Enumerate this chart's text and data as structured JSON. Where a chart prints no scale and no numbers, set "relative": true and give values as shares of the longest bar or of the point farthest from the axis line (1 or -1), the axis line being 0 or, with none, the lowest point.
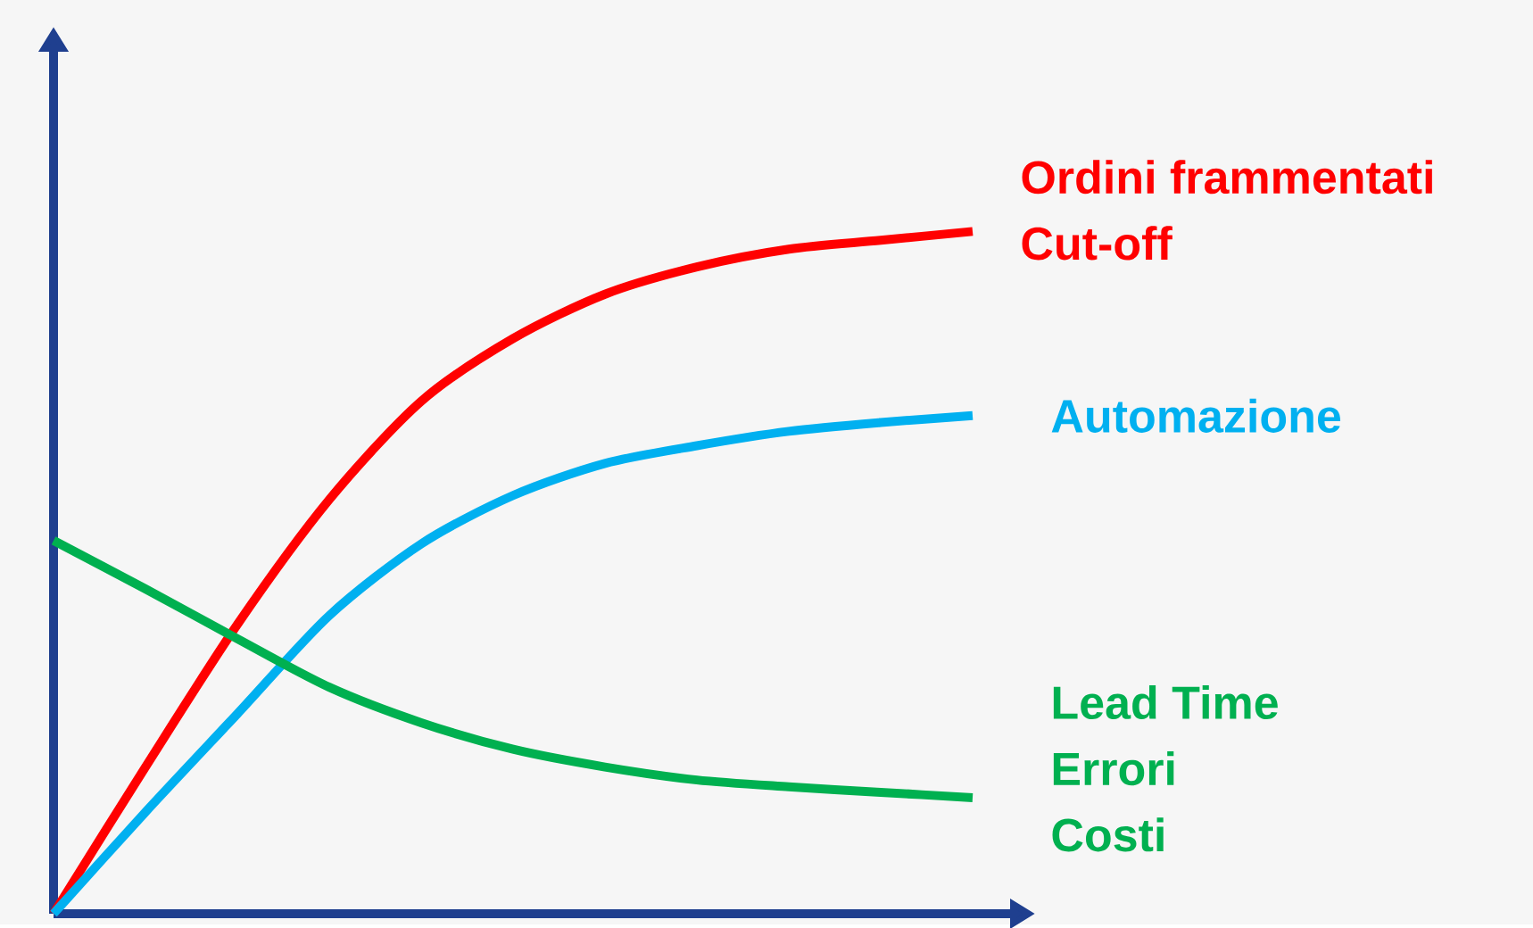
{
  "chart_data": {
    "type": "line",
    "relative": true,
    "categories": [
      null,
      null,
      null,
      null,
      null,
      null,
      null,
      null,
      null,
      null,
      null
    ],
    "series": [
      {
        "name": "Ordini frammentati",
        "color": "#ff0000",
        "values": [
          0,
          0.215,
          0.424,
          0.607,
          0.751,
          0.843,
          0.908,
          0.948,
          0.974,
          0.987,
          1
        ]
      },
      {
        "name": "Automazione",
        "color": "#00b0f0",
        "values": [
          0,
          0.149,
          0.293,
          0.437,
          0.542,
          0.613,
          0.66,
          0.686,
          0.707,
          0.72,
          0.73
        ]
      },
      {
        "name": "Lead Time",
        "color": "#00b050",
        "values": [
          0.547,
          0.476,
          0.403,
          0.332,
          0.28,
          0.241,
          0.215,
          0.196,
          0.186,
          0.178,
          0.17
        ]
      }
    ],
    "annotations": [
      "Cut-off",
      "Errori",
      "Costi"
    ],
    "marker": "none",
    "line_style": "solid"
  }
}
